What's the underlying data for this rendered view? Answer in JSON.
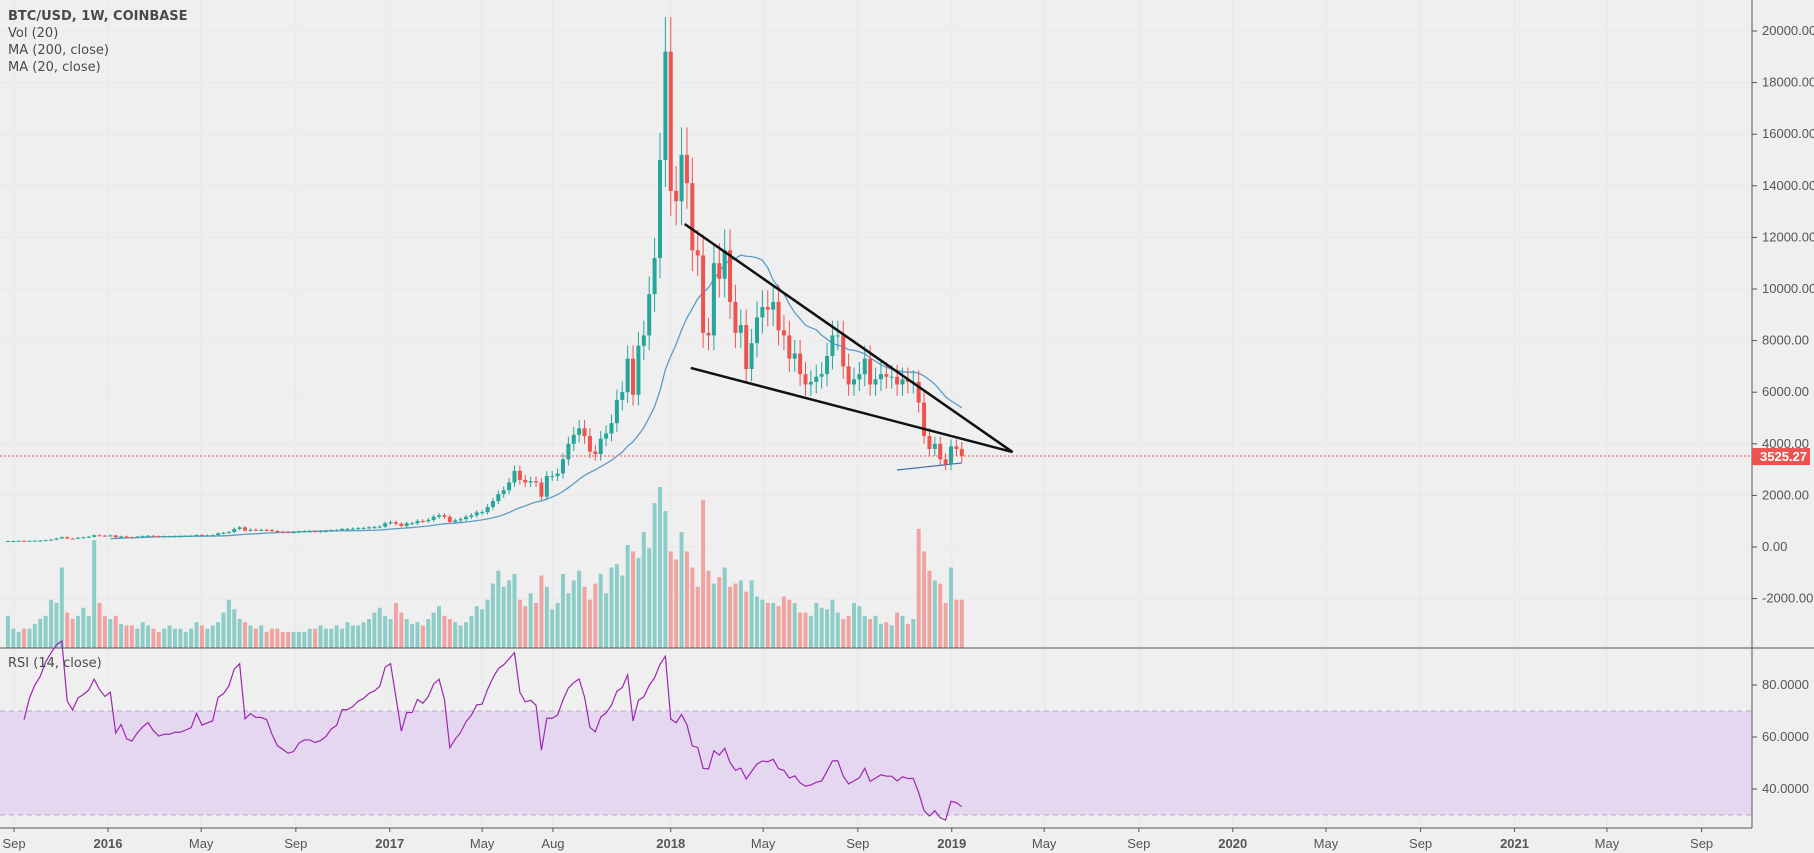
{
  "legend": {
    "title": "BTC/USD, 1W, COINBASE",
    "vol": "Vol (20)",
    "ma200": "MA (200, close)",
    "ma20": "MA (20, close)",
    "rsi": "RSI (14, close)"
  },
  "colors": {
    "background": "#efefef",
    "up": "#26a69a",
    "down": "#ef5350",
    "vol_up": "#8dcdc8",
    "vol_down": "#f0a3a1",
    "ma20": "#5b9cc8",
    "ma200": "#3f6fa8",
    "rsi_line": "#9c27b0",
    "rsi_band": "#e6d7f1",
    "trendline": "#111111",
    "price_tag": "#ef5350"
  },
  "current_price": "3525.27",
  "chart_data": {
    "type": "candlestick",
    "interval": "1W",
    "price_axis": {
      "ticks": [
        "20000.00",
        "18000.00",
        "16000.00",
        "14000.00",
        "12000.00",
        "10000.00",
        "8000.00",
        "6000.00",
        "4000.00",
        "2000.00",
        "0.00",
        "-2000.00"
      ]
    },
    "rsi_axis": {
      "ticks": [
        "80.0000",
        "60.0000",
        "40.0000"
      ],
      "upper_band": 70,
      "lower_band": 30
    },
    "time_axis": [
      {
        "date": "2015-09-01",
        "label": "Sep"
      },
      {
        "date": "2016-01-01",
        "label": "2016",
        "year": true
      },
      {
        "date": "2016-05-01",
        "label": "May"
      },
      {
        "date": "2016-09-01",
        "label": "Sep"
      },
      {
        "date": "2017-01-01",
        "label": "2017",
        "year": true
      },
      {
        "date": "2017-05-01",
        "label": "May"
      },
      {
        "date": "2017-08-01",
        "label": "Aug"
      },
      {
        "date": "2018-01-01",
        "label": "2018",
        "year": true
      },
      {
        "date": "2018-05-01",
        "label": "May"
      },
      {
        "date": "2018-09-01",
        "label": "Sep"
      },
      {
        "date": "2019-01-01",
        "label": "2019",
        "year": true
      },
      {
        "date": "2019-05-01",
        "label": "May"
      },
      {
        "date": "2019-09-01",
        "label": "Sep"
      },
      {
        "date": "2020-01-01",
        "label": "2020",
        "year": true
      },
      {
        "date": "2020-05-01",
        "label": "May"
      },
      {
        "date": "2020-09-01",
        "label": "Sep"
      },
      {
        "date": "2021-01-01",
        "label": "2021",
        "year": true
      },
      {
        "date": "2021-05-01",
        "label": "May"
      },
      {
        "date": "2021-09-01",
        "label": "Sep"
      }
    ],
    "weekly_close_by_month": {
      "2015-08": [
        230,
        230
      ],
      "2015-09": [
        240,
        235,
        240,
        245
      ],
      "2015-10": [
        250,
        265,
        285,
        330
      ],
      "2015-11": [
        380,
        330,
        320,
        360,
        375
      ],
      "2015-12": [
        395,
        455,
        440,
        430
      ],
      "2016-01": [
        450,
        380,
        410,
        380
      ],
      "2016-02": [
        375,
        400,
        420,
        435
      ],
      "2016-03": [
        420,
        410,
        415,
        415,
        420
      ],
      "2016-04": [
        420,
        425,
        430,
        465
      ],
      "2016-05": [
        450,
        455,
        460,
        530,
        545
      ],
      "2016-06": [
        580,
        700,
        760,
        640
      ],
      "2016-07": [
        670,
        660,
        660,
        655,
        620
      ],
      "2016-08": [
        590,
        580,
        570,
        575
      ],
      "2016-09": [
        600,
        610,
        610,
        605
      ],
      "2016-10": [
        610,
        620,
        640,
        650,
        700
      ],
      "2016-11": [
        700,
        710,
        730,
        740
      ],
      "2016-12": [
        760,
        770,
        790,
        920,
        960
      ],
      "2017-01": [
        900,
        820,
        920,
        920
      ],
      "2017-02": [
        1010,
        1000,
        1050,
        1170
      ],
      "2017-03": [
        1230,
        1170,
        970,
        1030
      ],
      "2017-04": [
        1080,
        1170,
        1230,
        1340,
        1350
      ],
      "2017-05": [
        1550,
        1780,
        2050,
        2200
      ],
      "2017-06": [
        2500,
        2950,
        2600,
        2500
      ],
      "2017-07": [
        2550,
        2500,
        1950,
        2750,
        2750
      ],
      "2017-08": [
        2850,
        3400,
        4000,
        4350
      ],
      "2017-09": [
        4600,
        4300,
        3700,
        3600,
        4200
      ],
      "2017-10": [
        4400,
        4800,
        5700,
        6000
      ],
      "2017-11": [
        7300,
        5900,
        7800,
        8200,
        9800
      ],
      "2017-12": [
        11200,
        15000,
        19200,
        13800,
        13400
      ],
      "2018-01": [
        15200,
        14100,
        11500,
        11300
      ],
      "2018-02": [
        8300,
        8200,
        11000,
        10400
      ],
      "2018-03": [
        11500,
        9500,
        8300,
        8600
      ],
      "2018-04": [
        6900,
        7900,
        8900,
        9300,
        9200
      ],
      "2018-05": [
        9500,
        8400,
        8200,
        7300
      ],
      "2018-06": [
        7500,
        6700,
        6300,
        6400
      ],
      "2018-07": [
        6600,
        6700,
        7400,
        8200,
        8200
      ],
      "2018-08": [
        7000,
        6300,
        6500,
        6700
      ],
      "2018-09": [
        7300,
        6300,
        6500,
        6700,
        6600
      ],
      "2018-10": [
        6600,
        6300,
        6500,
        6400
      ],
      "2018-11": [
        6400,
        5600,
        4300,
        3800
      ],
      "2018-12": [
        4000,
        3400,
        3200,
        3900,
        3800
      ],
      "2019-01": [
        3525.27
      ]
    },
    "weekly_volume_relative_by_month": {
      "2015-08": [
        20,
        12
      ],
      "2015-09": [
        10,
        12,
        12,
        15
      ],
      "2015-10": [
        18,
        20,
        30,
        28
      ],
      "2015-11": [
        50,
        22,
        18,
        20,
        25
      ],
      "2015-12": [
        20,
        67,
        28,
        20
      ],
      "2016-01": [
        18,
        20,
        15,
        14
      ],
      "2016-02": [
        14,
        12,
        16,
        14
      ],
      "2016-03": [
        12,
        10,
        12,
        14,
        12
      ],
      "2016-04": [
        12,
        10,
        12,
        16
      ],
      "2016-05": [
        14,
        12,
        14,
        16,
        22
      ],
      "2016-06": [
        30,
        24,
        18,
        16
      ],
      "2016-07": [
        14,
        12,
        14,
        10,
        12
      ],
      "2016-08": [
        12,
        10,
        10,
        10
      ],
      "2016-09": [
        10,
        10,
        12,
        12
      ],
      "2016-10": [
        14,
        12,
        12,
        14,
        12
      ],
      "2016-11": [
        16,
        14,
        14,
        16
      ],
      "2016-12": [
        18,
        22,
        25,
        20,
        18
      ],
      "2017-01": [
        28,
        22,
        18,
        15
      ],
      "2017-02": [
        16,
        14,
        18,
        22
      ],
      "2017-03": [
        26,
        20,
        18,
        16
      ],
      "2017-04": [
        14,
        16,
        20,
        26,
        24
      ],
      "2017-05": [
        30,
        40,
        48,
        38
      ],
      "2017-06": [
        42,
        46,
        30,
        26
      ],
      "2017-07": [
        34,
        28,
        45,
        38,
        24
      ],
      "2017-08": [
        28,
        46,
        34,
        42
      ],
      "2017-09": [
        48,
        38,
        30,
        40,
        46
      ],
      "2017-10": [
        34,
        50,
        52,
        45
      ],
      "2017-11": [
        64,
        60,
        56,
        72,
        62
      ],
      "2017-12": [
        90,
        100,
        85,
        60,
        55
      ],
      "2018-01": [
        72,
        60,
        50,
        38
      ],
      "2018-02": [
        92,
        48,
        40,
        44
      ],
      "2018-03": [
        50,
        38,
        40,
        42
      ],
      "2018-04": [
        35,
        42,
        32,
        30,
        28
      ],
      "2018-05": [
        28,
        26,
        32,
        30
      ],
      "2018-06": [
        28,
        22,
        22,
        20
      ],
      "2018-07": [
        28,
        25,
        24,
        30,
        22
      ],
      "2018-08": [
        18,
        20,
        28,
        26
      ],
      "2018-09": [
        20,
        18,
        20,
        15,
        16
      ],
      "2018-10": [
        14,
        22,
        20,
        15
      ],
      "2018-11": [
        18,
        74,
        60,
        48
      ],
      "2018-12": [
        42,
        40,
        28,
        50,
        30
      ],
      "2019-01": [
        30
      ]
    },
    "ma200_visible_tail": [
      2985,
      3008,
      3030,
      3053,
      3075,
      3098,
      3120,
      3143,
      3165,
      3188,
      3210,
      3233,
      3256
    ],
    "trendlines": [
      {
        "name": "upper",
        "from": {
          "date": "2018-01-19",
          "price": 12520
        },
        "to": {
          "date": "2019-03-21",
          "price": 3680
        }
      },
      {
        "name": "lower",
        "from": {
          "date": "2018-01-27",
          "price": 6940
        },
        "to": {
          "date": "2019-03-21",
          "price": 3680
        }
      }
    ]
  }
}
